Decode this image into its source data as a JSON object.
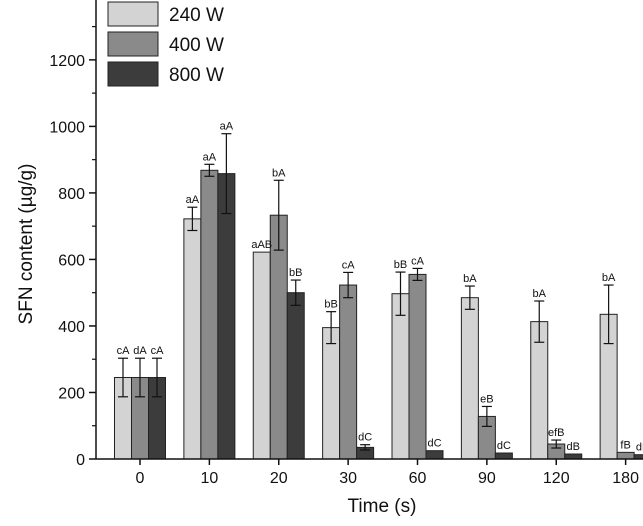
{
  "chart_data": {
    "type": "bar",
    "title": "",
    "xlabel": "Time (s)",
    "ylabel": "SFN content (µg/g)",
    "ylim": [
      0,
      1380
    ],
    "yticks": [
      0,
      200,
      400,
      600,
      800,
      1000,
      1200
    ],
    "categories": [
      "0",
      "10",
      "20",
      "30",
      "60",
      "90",
      "120",
      "180"
    ],
    "series": [
      {
        "name": "240 W",
        "color": "#d3d3d3",
        "values": [
          245,
          722,
          622,
          395,
          497,
          485,
          413,
          435
        ],
        "errors": [
          58,
          35,
          0,
          48,
          65,
          35,
          62,
          88
        ],
        "labels": [
          "cA",
          "aA",
          "aAB",
          "bB",
          "bB",
          "bA",
          "bA",
          "bA"
        ]
      },
      {
        "name": "400 W",
        "color": "#8a8a8a",
        "values": [
          245,
          868,
          733,
          523,
          555,
          128,
          45,
          20
        ],
        "errors": [
          58,
          18,
          105,
          38,
          18,
          30,
          12,
          0
        ],
        "labels": [
          "dA",
          "aA",
          "bA",
          "cA",
          "cA",
          "eB",
          "efB",
          "fB"
        ]
      },
      {
        "name": "800 W",
        "color": "#3c3c3c",
        "values": [
          245,
          858,
          500,
          35,
          25,
          18,
          15,
          13
        ],
        "errors": [
          58,
          120,
          38,
          8,
          0,
          0,
          0,
          0
        ],
        "labels": [
          "cA",
          "aA",
          "bB",
          "dC",
          "dC",
          "dC",
          "dB",
          "dB"
        ]
      }
    ],
    "legend_position": "top-left",
    "grid": false
  }
}
